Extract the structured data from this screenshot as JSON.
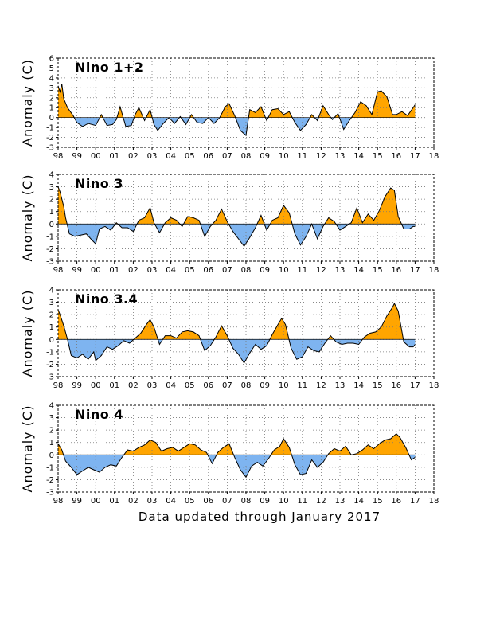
{
  "colors": {
    "positive": "#FFA500",
    "negative": "#7EB4F0",
    "line": "#000000"
  },
  "footer": "Data updated through January 2017",
  "chart_data": [
    {
      "type": "area",
      "title": "Nino 1+2",
      "ylabel": "Anomaly (C)",
      "xlim": [
        1998,
        2018
      ],
      "ylim": [
        -3,
        6
      ],
      "yticks": [
        -3,
        -2,
        -1,
        0,
        1,
        2,
        3,
        4,
        5,
        6
      ],
      "xticks": [
        1998,
        1999,
        2000,
        2001,
        2002,
        2003,
        2004,
        2005,
        2006,
        2007,
        2008,
        2009,
        2010,
        2011,
        2012,
        2013,
        2014,
        2015,
        2016,
        2017,
        2018
      ],
      "xticklabels": [
        "98",
        "99",
        "00",
        "01",
        "02",
        "03",
        "04",
        "05",
        "06",
        "07",
        "08",
        "09",
        "10",
        "11",
        "12",
        "13",
        "14",
        "15",
        "16",
        "17",
        "18"
      ],
      "grid": true,
      "x": [
        1998.0,
        1998.1,
        1998.2,
        1998.3,
        1998.5,
        1998.8,
        1999.0,
        1999.3,
        1999.6,
        2000.0,
        2000.3,
        2000.6,
        2000.9,
        2001.1,
        2001.3,
        2001.6,
        2001.9,
        2002.1,
        2002.3,
        2002.6,
        2002.9,
        2003.1,
        2003.3,
        2003.6,
        2003.9,
        2004.2,
        2004.5,
        2004.8,
        2005.1,
        2005.4,
        2005.7,
        2006.0,
        2006.3,
        2006.6,
        2006.9,
        2007.1,
        2007.4,
        2007.7,
        2008.0,
        2008.2,
        2008.5,
        2008.8,
        2009.1,
        2009.4,
        2009.7,
        2010.0,
        2010.3,
        2010.6,
        2010.9,
        2011.2,
        2011.5,
        2011.8,
        2012.1,
        2012.4,
        2012.6,
        2012.9,
        2013.2,
        2013.5,
        2013.8,
        2014.1,
        2014.4,
        2014.7,
        2015.0,
        2015.2,
        2015.5,
        2015.8,
        2016.0,
        2016.3,
        2016.6,
        2016.9,
        2017.0
      ],
      "values": [
        3.2,
        2.6,
        3.4,
        1.9,
        1.0,
        0.2,
        -0.5,
        -0.9,
        -0.6,
        -0.8,
        0.3,
        -0.8,
        -0.7,
        -0.2,
        1.1,
        -0.9,
        -0.8,
        0.3,
        1.0,
        -0.3,
        0.8,
        -0.7,
        -1.3,
        -0.6,
        0.0,
        -0.6,
        0.1,
        -0.7,
        0.3,
        -0.5,
        -0.6,
        0.0,
        -0.6,
        0.0,
        1.1,
        1.4,
        0.2,
        -1.3,
        -1.8,
        0.8,
        0.5,
        1.1,
        -0.3,
        0.8,
        0.9,
        0.3,
        0.6,
        -0.5,
        -1.3,
        -0.7,
        0.3,
        -0.3,
        1.2,
        0.3,
        -0.2,
        0.4,
        -1.2,
        -0.3,
        0.5,
        1.6,
        1.2,
        0.3,
        2.6,
        2.7,
        2.1,
        0.3,
        0.3,
        0.6,
        0.2,
        1.0,
        1.3
      ]
    },
    {
      "type": "area",
      "title": "Nino 3",
      "ylabel": "Anomaly (C)",
      "xlim": [
        1998,
        2018
      ],
      "ylim": [
        -3,
        4
      ],
      "yticks": [
        -3,
        -2,
        -1,
        0,
        1,
        2,
        3,
        4
      ],
      "xticks": [
        1998,
        1999,
        2000,
        2001,
        2002,
        2003,
        2004,
        2005,
        2006,
        2007,
        2008,
        2009,
        2010,
        2011,
        2012,
        2013,
        2014,
        2015,
        2016,
        2017,
        2018
      ],
      "xticklabels": [
        "98",
        "99",
        "00",
        "01",
        "02",
        "03",
        "04",
        "05",
        "06",
        "07",
        "08",
        "09",
        "10",
        "11",
        "12",
        "13",
        "14",
        "15",
        "16",
        "17",
        "18"
      ],
      "grid": true,
      "x": [
        1998.0,
        1998.1,
        1998.3,
        1998.4,
        1998.6,
        1998.9,
        1999.2,
        1999.5,
        1999.8,
        2000.0,
        2000.2,
        2000.5,
        2000.8,
        2001.1,
        2001.4,
        2001.7,
        2002.0,
        2002.3,
        2002.6,
        2002.9,
        2003.1,
        2003.4,
        2003.7,
        2004.0,
        2004.3,
        2004.6,
        2004.9,
        2005.2,
        2005.5,
        2005.8,
        2006.1,
        2006.4,
        2006.7,
        2007.0,
        2007.3,
        2007.6,
        2007.9,
        2008.2,
        2008.5,
        2008.8,
        2009.1,
        2009.4,
        2009.7,
        2010.0,
        2010.3,
        2010.6,
        2010.9,
        2011.2,
        2011.5,
        2011.8,
        2012.1,
        2012.4,
        2012.7,
        2013.0,
        2013.3,
        2013.6,
        2013.9,
        2014.2,
        2014.5,
        2014.8,
        2015.1,
        2015.4,
        2015.7,
        2015.9,
        2016.1,
        2016.4,
        2016.7,
        2016.9,
        2017.0
      ],
      "values": [
        3.0,
        2.6,
        1.4,
        0.5,
        -0.8,
        -1.0,
        -0.9,
        -0.8,
        -1.3,
        -1.6,
        -0.4,
        -0.2,
        -0.5,
        0.1,
        -0.3,
        -0.3,
        -0.6,
        0.3,
        0.5,
        1.3,
        0.1,
        -0.7,
        0.1,
        0.5,
        0.3,
        -0.2,
        0.6,
        0.5,
        0.3,
        -1.0,
        -0.2,
        0.3,
        1.2,
        0.2,
        -0.6,
        -1.2,
        -1.8,
        -1.1,
        -0.3,
        0.7,
        -0.5,
        0.3,
        0.5,
        1.5,
        0.9,
        -0.8,
        -1.7,
        -1.0,
        0.0,
        -1.2,
        -0.2,
        0.5,
        0.2,
        -0.5,
        -0.2,
        0.1,
        1.3,
        0.1,
        0.8,
        0.3,
        1.1,
        2.2,
        2.9,
        2.7,
        0.6,
        -0.4,
        -0.4,
        -0.2,
        -0.2
      ]
    },
    {
      "type": "area",
      "title": "Nino 3.4",
      "ylabel": "Anomaly (C)",
      "xlim": [
        1998,
        2018
      ],
      "ylim": [
        -3,
        4
      ],
      "yticks": [
        -3,
        -2,
        -1,
        0,
        1,
        2,
        3,
        4
      ],
      "xticks": [
        1998,
        1999,
        2000,
        2001,
        2002,
        2003,
        2004,
        2005,
        2006,
        2007,
        2008,
        2009,
        2010,
        2011,
        2012,
        2013,
        2014,
        2015,
        2016,
        2017,
        2018
      ],
      "xticklabels": [
        "98",
        "99",
        "00",
        "01",
        "02",
        "03",
        "04",
        "05",
        "06",
        "07",
        "08",
        "09",
        "10",
        "11",
        "12",
        "13",
        "14",
        "15",
        "16",
        "17",
        "18"
      ],
      "grid": true,
      "x": [
        1998.0,
        1998.1,
        1998.3,
        1998.5,
        1998.7,
        1999.0,
        1999.3,
        1999.6,
        1999.9,
        2000.0,
        2000.3,
        2000.6,
        2000.9,
        2001.2,
        2001.5,
        2001.8,
        2002.1,
        2002.4,
        2002.7,
        2002.9,
        2003.1,
        2003.4,
        2003.7,
        2004.0,
        2004.3,
        2004.6,
        2004.9,
        2005.2,
        2005.5,
        2005.8,
        2006.1,
        2006.4,
        2006.7,
        2007.0,
        2007.3,
        2007.6,
        2007.9,
        2008.2,
        2008.5,
        2008.8,
        2009.1,
        2009.4,
        2009.7,
        2009.9,
        2010.1,
        2010.4,
        2010.7,
        2011.0,
        2011.3,
        2011.6,
        2011.9,
        2012.2,
        2012.5,
        2012.8,
        2013.1,
        2013.4,
        2013.7,
        2014.0,
        2014.3,
        2014.6,
        2014.9,
        2015.2,
        2015.5,
        2015.8,
        2015.9,
        2016.1,
        2016.4,
        2016.7,
        2016.9,
        2017.0
      ],
      "values": [
        2.4,
        2.0,
        1.1,
        0.0,
        -1.3,
        -1.5,
        -1.2,
        -1.6,
        -1.0,
        -1.7,
        -1.3,
        -0.6,
        -0.8,
        -0.5,
        -0.1,
        -0.3,
        0.1,
        0.5,
        1.2,
        1.6,
        1.0,
        -0.4,
        0.3,
        0.3,
        0.1,
        0.6,
        0.7,
        0.6,
        0.3,
        -0.9,
        -0.5,
        0.2,
        1.1,
        0.3,
        -0.7,
        -1.2,
        -1.9,
        -1.1,
        -0.4,
        -0.8,
        -0.5,
        0.4,
        1.2,
        1.7,
        1.2,
        -0.7,
        -1.6,
        -1.4,
        -0.6,
        -0.9,
        -1.0,
        -0.3,
        0.3,
        -0.2,
        -0.4,
        -0.3,
        -0.3,
        -0.4,
        0.2,
        0.5,
        0.6,
        1.0,
        1.9,
        2.6,
        2.9,
        2.3,
        -0.2,
        -0.6,
        -0.6,
        -0.4
      ]
    },
    {
      "type": "area",
      "title": "Nino 4",
      "ylabel": "Anomaly (C)",
      "xlim": [
        1998,
        2018
      ],
      "ylim": [
        -3,
        4
      ],
      "yticks": [
        -3,
        -2,
        -1,
        0,
        1,
        2,
        3,
        4
      ],
      "xticks": [
        1998,
        1999,
        2000,
        2001,
        2002,
        2003,
        2004,
        2005,
        2006,
        2007,
        2008,
        2009,
        2010,
        2011,
        2012,
        2013,
        2014,
        2015,
        2016,
        2017,
        2018
      ],
      "xticklabels": [
        "98",
        "99",
        "00",
        "01",
        "02",
        "03",
        "04",
        "05",
        "06",
        "07",
        "08",
        "09",
        "10",
        "11",
        "12",
        "13",
        "14",
        "15",
        "16",
        "17",
        "18"
      ],
      "grid": true,
      "x": [
        1998.0,
        1998.2,
        1998.4,
        1998.7,
        1999.0,
        1999.3,
        1999.6,
        1999.9,
        2000.2,
        2000.5,
        2000.8,
        2001.1,
        2001.4,
        2001.7,
        2002.0,
        2002.3,
        2002.6,
        2002.9,
        2003.2,
        2003.5,
        2003.8,
        2004.1,
        2004.4,
        2004.7,
        2005.0,
        2005.3,
        2005.6,
        2005.9,
        2006.2,
        2006.5,
        2006.8,
        2007.1,
        2007.4,
        2007.7,
        2008.0,
        2008.3,
        2008.6,
        2008.9,
        2009.2,
        2009.5,
        2009.8,
        2010.0,
        2010.3,
        2010.6,
        2010.9,
        2011.2,
        2011.5,
        2011.8,
        2012.1,
        2012.4,
        2012.7,
        2013.0,
        2013.3,
        2013.6,
        2013.9,
        2014.2,
        2014.5,
        2014.8,
        2015.1,
        2015.4,
        2015.7,
        2016.0,
        2016.2,
        2016.5,
        2016.8,
        2017.0
      ],
      "values": [
        0.9,
        0.4,
        -0.5,
        -1.0,
        -1.6,
        -1.3,
        -1.0,
        -1.2,
        -1.4,
        -1.0,
        -0.8,
        -0.9,
        -0.2,
        0.4,
        0.3,
        0.6,
        0.8,
        1.2,
        1.0,
        0.3,
        0.5,
        0.6,
        0.3,
        0.6,
        0.9,
        0.8,
        0.4,
        0.2,
        -0.7,
        0.2,
        0.6,
        0.9,
        -0.2,
        -1.2,
        -1.8,
        -0.9,
        -0.6,
        -0.9,
        -0.3,
        0.4,
        0.7,
        1.3,
        0.6,
        -0.8,
        -1.6,
        -1.5,
        -0.4,
        -1.0,
        -0.6,
        0.1,
        0.5,
        0.3,
        0.7,
        0.0,
        0.1,
        0.4,
        0.8,
        0.5,
        0.9,
        1.2,
        1.3,
        1.7,
        1.4,
        0.6,
        -0.4,
        -0.2
      ]
    }
  ]
}
